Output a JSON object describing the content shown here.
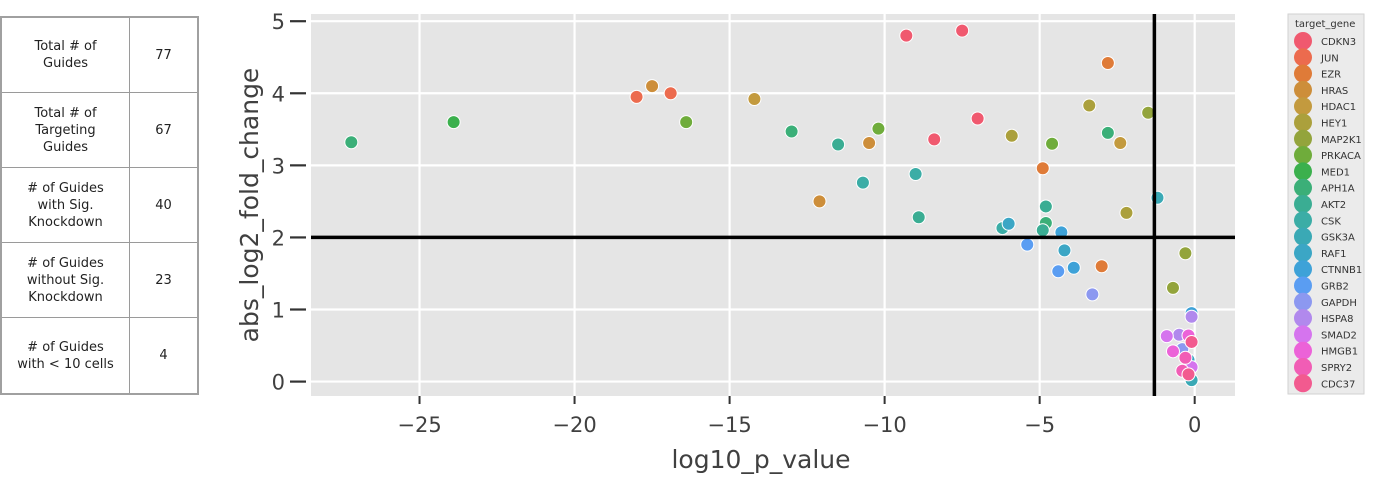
{
  "summary_table": [
    {
      "label": "Total # of\nGuides",
      "value": "77"
    },
    {
      "label": "Total # of\nTargeting\nGuides",
      "value": "67"
    },
    {
      "label": "# of Guides\nwith Sig.\nKnockdown",
      "value": "40"
    },
    {
      "label": "# of Guides\nwithout Sig.\nKnockdown",
      "value": "23"
    },
    {
      "label": "# of Guides\nwith < 10 cells",
      "value": "4"
    }
  ],
  "chart_data": {
    "type": "scatter",
    "xlabel": "log10_p_value",
    "ylabel": "abs_log2_fold_change",
    "xlim": [
      -28.5,
      1.3
    ],
    "ylim": [
      -0.2,
      5.1
    ],
    "xticks": [
      -25,
      -20,
      -15,
      -10,
      -5,
      0
    ],
    "xtick_labels": [
      "−25",
      "−20",
      "−15",
      "−10",
      "−5",
      "0"
    ],
    "yticks": [
      0,
      1,
      2,
      3,
      4,
      5
    ],
    "ytick_labels": [
      "0",
      "1",
      "2",
      "3",
      "4",
      "5"
    ],
    "grid": true,
    "background": "#e5e5e5",
    "threshold_lines": {
      "x": -1.3,
      "y": 2.0
    },
    "legend": {
      "title": "target_gene",
      "placement": "right",
      "entries": [
        {
          "name": "CDKN3",
          "color": "#f0596f"
        },
        {
          "name": "JUN",
          "color": "#ec6b4e"
        },
        {
          "name": "EZR",
          "color": "#df7b38"
        },
        {
          "name": "HRAS",
          "color": "#cd8e3a"
        },
        {
          "name": "HDAC1",
          "color": "#c39a3e"
        },
        {
          "name": "HEY1",
          "color": "#aba03c"
        },
        {
          "name": "MAP2K1",
          "color": "#93a43c"
        },
        {
          "name": "PRKACA",
          "color": "#6fac3b"
        },
        {
          "name": "MED1",
          "color": "#3bb04d"
        },
        {
          "name": "APH1A",
          "color": "#3baf78"
        },
        {
          "name": "AKT2",
          "color": "#3aad93"
        },
        {
          "name": "CSK",
          "color": "#3bada6"
        },
        {
          "name": "GSK3A",
          "color": "#3aa9b5"
        },
        {
          "name": "RAF1",
          "color": "#3ba6c5"
        },
        {
          "name": "CTNNB1",
          "color": "#3ea2d8"
        },
        {
          "name": "GRB2",
          "color": "#5a9df2"
        },
        {
          "name": "GAPDH",
          "color": "#8c98f0"
        },
        {
          "name": "HSPA8",
          "color": "#b189ed"
        },
        {
          "name": "SMAD2",
          "color": "#d574ee"
        },
        {
          "name": "HMGB1",
          "color": "#ec62d8"
        },
        {
          "name": "SPRY2",
          "color": "#f15db5"
        },
        {
          "name": "CDC37",
          "color": "#f25a8f"
        }
      ]
    },
    "points": [
      {
        "gene": "CDKN3",
        "x": -7.5,
        "y": 4.87
      },
      {
        "gene": "CDKN3",
        "x": -8.4,
        "y": 3.36
      },
      {
        "gene": "CDKN3",
        "x": -7.0,
        "y": 3.65
      },
      {
        "gene": "CDKN3",
        "x": -9.3,
        "y": 4.8
      },
      {
        "gene": "JUN",
        "x": -18.0,
        "y": 3.95
      },
      {
        "gene": "JUN",
        "x": -16.9,
        "y": 4.0
      },
      {
        "gene": "EZR",
        "x": -2.8,
        "y": 4.42
      },
      {
        "gene": "EZR",
        "x": -4.9,
        "y": 2.96
      },
      {
        "gene": "EZR",
        "x": -3.0,
        "y": 1.6
      },
      {
        "gene": "HRAS",
        "x": -17.5,
        "y": 4.1
      },
      {
        "gene": "HRAS",
        "x": -10.5,
        "y": 3.31
      },
      {
        "gene": "HRAS",
        "x": -12.1,
        "y": 2.5
      },
      {
        "gene": "HDAC1",
        "x": -14.2,
        "y": 3.92
      },
      {
        "gene": "HDAC1",
        "x": -2.4,
        "y": 3.31
      },
      {
        "gene": "HEY1",
        "x": -5.9,
        "y": 3.41
      },
      {
        "gene": "HEY1",
        "x": -3.4,
        "y": 3.83
      },
      {
        "gene": "HEY1",
        "x": -2.2,
        "y": 2.34
      },
      {
        "gene": "MAP2K1",
        "x": -0.3,
        "y": 1.78
      },
      {
        "gene": "MAP2K1",
        "x": -0.7,
        "y": 1.3
      },
      {
        "gene": "MAP2K1",
        "x": -1.5,
        "y": 3.73
      },
      {
        "gene": "PRKACA",
        "x": -16.4,
        "y": 3.6
      },
      {
        "gene": "PRKACA",
        "x": -10.2,
        "y": 3.51
      },
      {
        "gene": "PRKACA",
        "x": -4.6,
        "y": 3.3
      },
      {
        "gene": "MED1",
        "x": -23.9,
        "y": 3.6
      },
      {
        "gene": "APH1A",
        "x": -27.2,
        "y": 3.32
      },
      {
        "gene": "APH1A",
        "x": -13.0,
        "y": 3.47
      },
      {
        "gene": "APH1A",
        "x": -4.8,
        "y": 2.2
      },
      {
        "gene": "APH1A",
        "x": -2.8,
        "y": 3.45
      },
      {
        "gene": "AKT2",
        "x": -11.5,
        "y": 3.29
      },
      {
        "gene": "AKT2",
        "x": -4.8,
        "y": 2.43
      },
      {
        "gene": "AKT2",
        "x": -8.9,
        "y": 2.28
      },
      {
        "gene": "AKT2",
        "x": -4.9,
        "y": 2.1
      },
      {
        "gene": "CSK",
        "x": -10.7,
        "y": 2.76
      },
      {
        "gene": "CSK",
        "x": -9.0,
        "y": 2.88
      },
      {
        "gene": "CSK",
        "x": -6.2,
        "y": 2.13
      },
      {
        "gene": "GSK3A",
        "x": -1.2,
        "y": 2.55
      },
      {
        "gene": "GSK3A",
        "x": -0.1,
        "y": 0.02
      },
      {
        "gene": "RAF1",
        "x": -4.2,
        "y": 1.82
      },
      {
        "gene": "RAF1",
        "x": -6.0,
        "y": 2.19
      },
      {
        "gene": "RAF1",
        "x": -0.2,
        "y": 0.3
      },
      {
        "gene": "CTNNB1",
        "x": -4.3,
        "y": 2.07
      },
      {
        "gene": "CTNNB1",
        "x": -3.9,
        "y": 1.58
      },
      {
        "gene": "CTNNB1",
        "x": -0.1,
        "y": 0.95
      },
      {
        "gene": "GRB2",
        "x": -5.4,
        "y": 1.9
      },
      {
        "gene": "GRB2",
        "x": -4.4,
        "y": 1.53
      },
      {
        "gene": "GAPDH",
        "x": -3.3,
        "y": 1.21
      },
      {
        "gene": "GAPDH",
        "x": -0.4,
        "y": 0.45
      },
      {
        "gene": "HSPA8",
        "x": -0.1,
        "y": 0.9
      },
      {
        "gene": "HSPA8",
        "x": -0.5,
        "y": 0.65
      },
      {
        "gene": "SMAD2",
        "x": -0.9,
        "y": 0.63
      },
      {
        "gene": "SMAD2",
        "x": -0.1,
        "y": 0.2
      },
      {
        "gene": "HMGB1",
        "x": -0.2,
        "y": 0.64
      },
      {
        "gene": "HMGB1",
        "x": -0.7,
        "y": 0.42
      },
      {
        "gene": "SPRY2",
        "x": -0.4,
        "y": 0.15
      },
      {
        "gene": "SPRY2",
        "x": -0.3,
        "y": 0.33
      },
      {
        "gene": "CDC37",
        "x": -0.2,
        "y": 0.1
      },
      {
        "gene": "CDC37",
        "x": -0.1,
        "y": 0.55
      }
    ]
  }
}
